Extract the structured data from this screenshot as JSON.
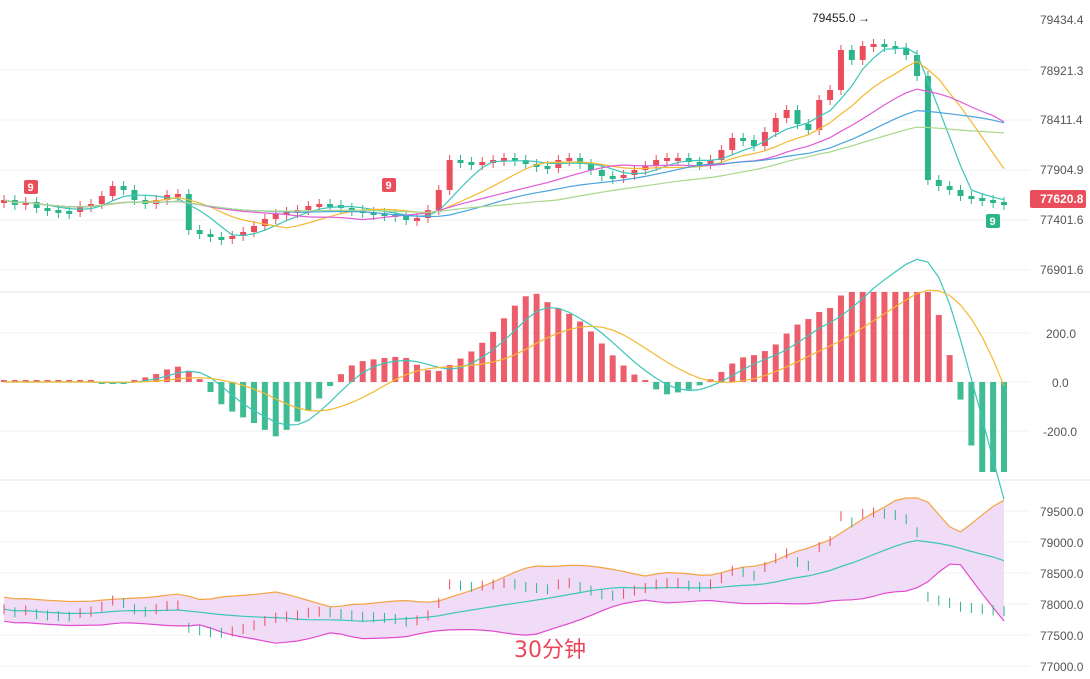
{
  "chart_data": [
    {
      "type": "candlestick",
      "name": "price",
      "y_ticks": [
        "79434.4",
        "78921.3",
        "78411.4",
        "77904.9",
        "77401.6",
        "76901.6"
      ],
      "current_price": "77620.8",
      "peak_label": "79455.0",
      "markers": [
        "9",
        "9",
        "9"
      ],
      "colors": {
        "up": "#ea4d5c",
        "down": "#2bb58a",
        "ma1": "#3cc6b8",
        "ma2": "#f5b830",
        "ma3": "#e05bd6",
        "ma4": "#4aa3e0",
        "ma5": "#a8d88c"
      }
    },
    {
      "type": "bar",
      "name": "macd",
      "y_ticks": [
        "200.0",
        "0.0",
        "-200.0"
      ],
      "colors": {
        "pos": "#ea4d5c",
        "neg": "#2bb58a",
        "dif": "#3cc6b8",
        "dea": "#f5b830"
      }
    },
    {
      "type": "ohlc",
      "name": "bollinger",
      "y_ticks": [
        "79500.0",
        "79000.0",
        "78500.0",
        "78000.0",
        "77500.0",
        "77000.0"
      ],
      "watermark": "30分钟",
      "colors": {
        "upper": "#f5a340",
        "mid": "#3cc6b8",
        "lower": "#e04bd0",
        "band": "#f1dcf7"
      }
    }
  ]
}
